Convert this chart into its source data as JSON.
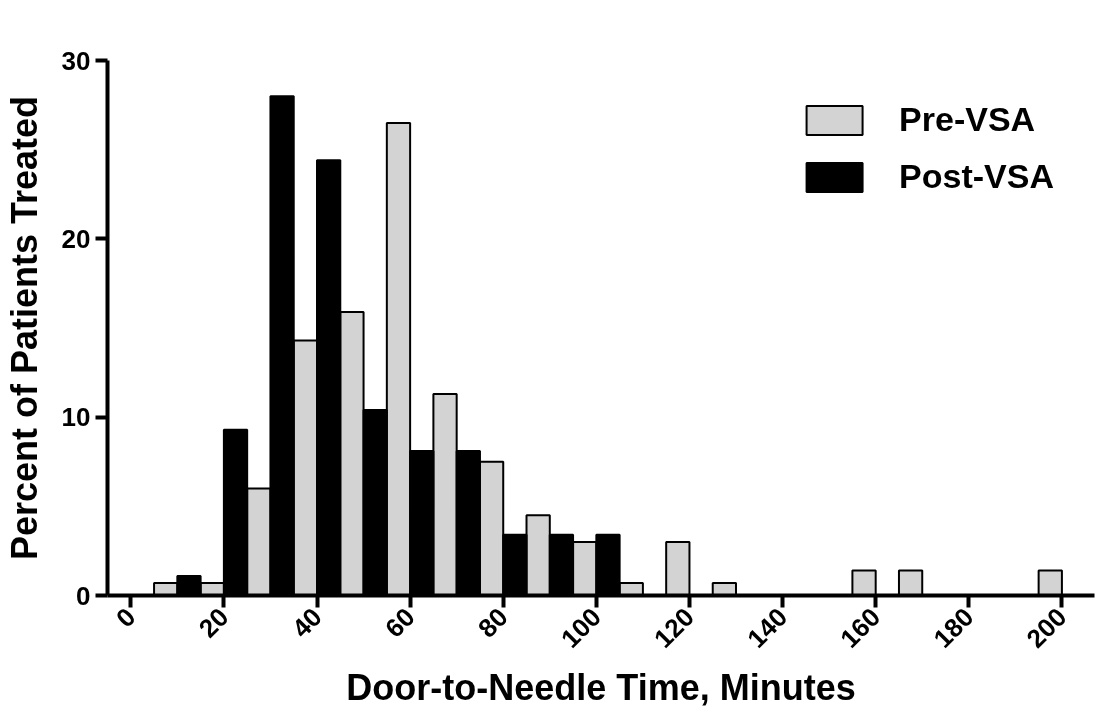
{
  "chart_data": {
    "type": "bar",
    "xlabel": "Door-to-Needle Time, Minutes",
    "ylabel": "Percent of Patients Treated",
    "xlim": [
      -5,
      207
    ],
    "xticks": [
      0,
      20,
      40,
      60,
      80,
      100,
      120,
      140,
      160,
      180,
      200
    ],
    "ylim": [
      0,
      30
    ],
    "yticks": [
      0,
      10,
      20,
      30
    ],
    "grid": false,
    "legend": "top right",
    "series": [
      {
        "name": "Pre-VSA",
        "color": "#d3d3d3",
        "x": [
          10,
          20,
          30,
          40,
          50,
          60,
          70,
          80,
          90,
          100,
          110,
          120,
          130,
          140,
          150,
          160,
          170,
          180,
          190,
          200
        ],
        "values": [
          0.7,
          0.7,
          6.0,
          14.3,
          15.9,
          26.5,
          11.3,
          7.5,
          4.5,
          3.0,
          0.7,
          3.0,
          0.7,
          null,
          null,
          1.4,
          1.4,
          null,
          null,
          1.4
        ]
      },
      {
        "name": "Post-VSA",
        "color": "#000000",
        "x": [
          10,
          20,
          30,
          40,
          50,
          60,
          70,
          80,
          90,
          100
        ],
        "values": [
          1.1,
          9.3,
          28.0,
          24.4,
          10.4,
          8.1,
          8.1,
          3.4,
          3.4,
          3.4
        ]
      }
    ]
  }
}
